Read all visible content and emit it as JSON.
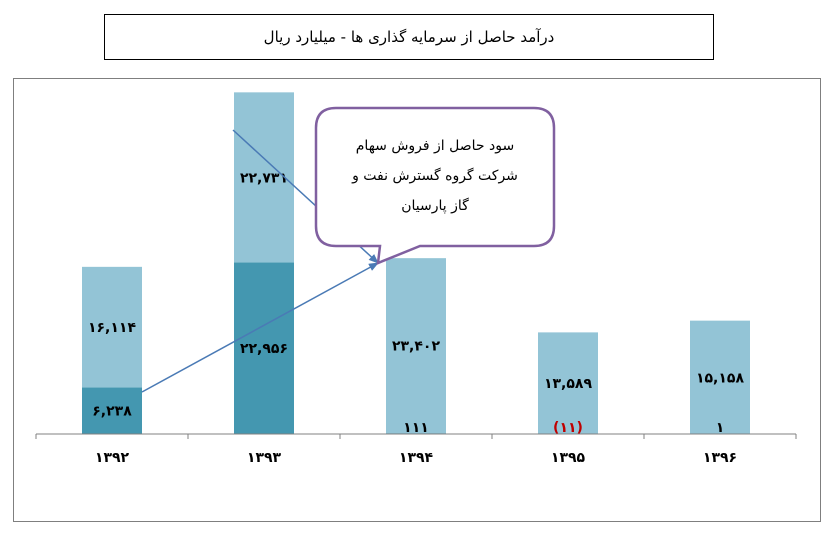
{
  "title": "درآمد حاصل از سرمایه گذاری ها  -  میلیارد ریال",
  "callout": {
    "lines": [
      "سود حاصل از فروش سهام",
      "شرکت گروه گسترش نفت و",
      "گاز پارسیان"
    ]
  },
  "colors": {
    "dark": "#4497b0",
    "light": "#93c4d6",
    "arrow": "#4a7ab5",
    "callout_border": "#8060a0",
    "negative": "#c00000"
  },
  "chart_data": {
    "type": "bar",
    "stacked": true,
    "categories": [
      "۱۳۹۲",
      "۱۳۹۳",
      "۱۳۹۴",
      "۱۳۹۵",
      "۱۳۹۶"
    ],
    "series": [
      {
        "values": [
          6238,
          22956,
          111,
          -11,
          1
        ],
        "labels": [
          "۶,۲۳۸",
          "۲۲,۹۵۶",
          "۱۱۱",
          "(۱۱)",
          "۱"
        ]
      },
      {
        "values": [
          16114,
          22731,
          23402,
          13589,
          15158
        ],
        "labels": [
          "۱۶,۱۱۴",
          "۲۲,۷۳۱",
          "۲۳,۴۰۲",
          "۱۳,۵۸۹",
          "۱۵,۱۵۸"
        ]
      }
    ],
    "ylim": [
      0,
      46000
    ]
  }
}
